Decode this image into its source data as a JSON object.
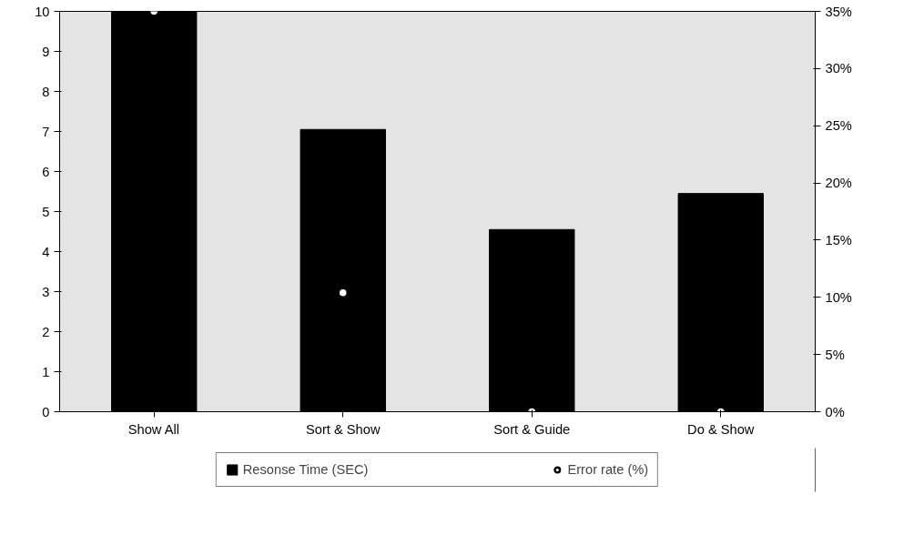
{
  "chart_data": {
    "type": "bar",
    "categories": [
      "Show All",
      "Sort & Show",
      "Sort & Guide",
      "Do & Show"
    ],
    "series": [
      {
        "name": "Resonse Time (SEC)",
        "color": "#000000",
        "values": [
          10,
          7.05,
          4.55,
          5.45
        ]
      },
      {
        "name": "Error rate (%)",
        "type": "scatter",
        "axis": "y2",
        "color": "#ffffff",
        "marker": "circle",
        "values": [
          35,
          10.4,
          0,
          0
        ]
      }
    ],
    "ylim": [
      0,
      10
    ],
    "yticks": [
      0,
      1,
      2,
      3,
      4,
      5,
      6,
      7,
      8,
      9,
      10
    ],
    "y2lim": [
      0,
      35
    ],
    "y2ticks": [
      {
        "value": 0,
        "label": "0%"
      },
      {
        "value": 5,
        "label": "5%"
      },
      {
        "value": 10,
        "label": "10%"
      },
      {
        "value": 15,
        "label": "15%"
      },
      {
        "value": 20,
        "label": "20%"
      },
      {
        "value": 25,
        "label": "25%"
      },
      {
        "value": 30,
        "label": "30%"
      },
      {
        "value": 35,
        "label": "35%"
      }
    ],
    "grid": false,
    "legend": "bottom"
  }
}
